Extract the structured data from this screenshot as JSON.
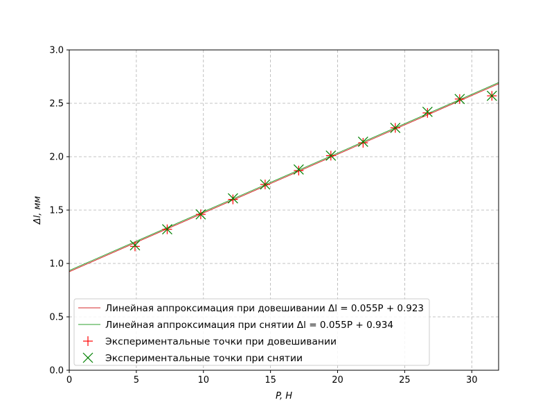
{
  "chart_data": {
    "type": "scatter",
    "xlabel": "P, Н",
    "ylabel": "Δl, мм",
    "xlim": [
      0,
      32
    ],
    "ylim": [
      0,
      3.0
    ],
    "x_ticks": [
      "0",
      "5",
      "10",
      "15",
      "20",
      "25",
      "30"
    ],
    "y_ticks": [
      "0.0",
      "0.5",
      "1.0",
      "1.5",
      "2.0",
      "2.5",
      "3.0"
    ],
    "grid": true,
    "legend_position": "lower-left",
    "fit_lines": [
      {
        "name": "Линейная аппроксимация при довешивании Δl = 0.055P + 0.923",
        "slope": 0.055,
        "intercept": 0.923,
        "color": "#d62728"
      },
      {
        "name": "Линейная аппроксимация при снятии Δl = 0.055P + 0.934",
        "slope": 0.055,
        "intercept": 0.934,
        "color": "#2ca02c"
      }
    ],
    "series": [
      {
        "name": "Экспериментальные точки при довешивании",
        "marker": "plus",
        "color": "#ff0000",
        "x": [
          4.9,
          7.3,
          9.8,
          12.2,
          14.6,
          17.1,
          19.5,
          21.9,
          24.3,
          26.7,
          29.1,
          31.5
        ],
        "y": [
          1.16,
          1.32,
          1.46,
          1.6,
          1.74,
          1.87,
          2.01,
          2.13,
          2.27,
          2.41,
          2.54,
          2.57
        ]
      },
      {
        "name": "Экспериментальные точки при снятии",
        "marker": "cross",
        "color": "#008000",
        "x": [
          4.9,
          7.3,
          9.8,
          12.2,
          14.6,
          17.1,
          19.5,
          21.9,
          24.3,
          26.7,
          29.1,
          31.5
        ],
        "y": [
          1.17,
          1.32,
          1.46,
          1.61,
          1.74,
          1.88,
          2.01,
          2.14,
          2.27,
          2.42,
          2.54,
          2.57
        ]
      }
    ]
  }
}
